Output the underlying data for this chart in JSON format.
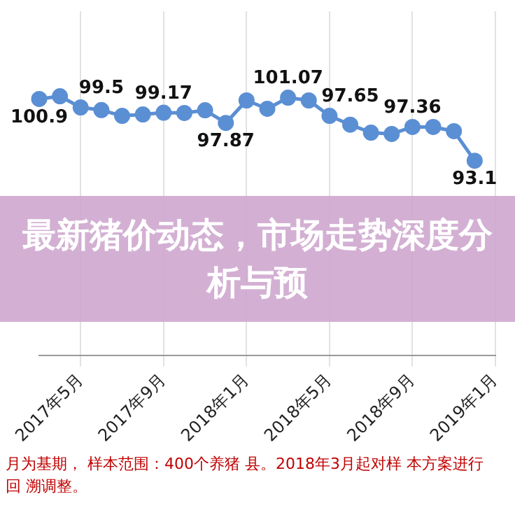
{
  "chart_data": {
    "type": "line",
    "title": "最新猪价动态，市场走势深度分析与预",
    "categories": [
      null,
      null,
      "2017年5月",
      null,
      null,
      null,
      "2017年9月",
      null,
      null,
      null,
      "2018年1月",
      null,
      null,
      null,
      "2018年5月",
      null,
      null,
      null,
      "2018年9月",
      null,
      null,
      null,
      "2019年1月"
    ],
    "series": [
      {
        "color": "#5b8fd4",
        "values": [
          100.9,
          101.25,
          99.83,
          99.5,
          98.77,
          98.95,
          99.17,
          99.13,
          99.48,
          97.87,
          100.72,
          99.66,
          101.07,
          100.72,
          98.77,
          97.65,
          96.65,
          96.48,
          97.36,
          97.36,
          96.83,
          93.1,
          null
        ],
        "value_labels": [
          "100.9",
          null,
          null,
          "99.5",
          null,
          null,
          "99.17",
          null,
          null,
          "97.87",
          null,
          null,
          "101.07",
          null,
          null,
          "97.65",
          null,
          null,
          "97.36",
          null,
          null,
          "93.1",
          null
        ]
      }
    ],
    "ylim": [
      68.5,
      112
    ],
    "tick_labels": "x",
    "grid": "x",
    "legend": false,
    "marker": "circle",
    "line_style": "solid",
    "annotations": [
      "月为基期， 样本范围：400个养猪 县。2018年3月起对样 本方案进行",
      "回 溯调整。"
    ]
  }
}
